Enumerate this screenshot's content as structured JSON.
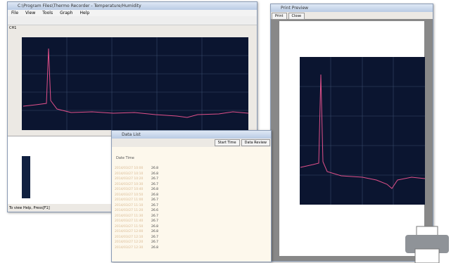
{
  "main_window": {
    "title": "C:\\Program Files\\Thermo Recorder - Temperature/Humidity",
    "menu": [
      "File",
      "View",
      "Tools",
      "Graph",
      "Help"
    ],
    "status": "To view Help, Press[F1]",
    "channel": "CH1"
  },
  "data_list": {
    "title": "Data List",
    "buttons": [
      "Start Time",
      "Data Review"
    ],
    "column": "Date Time",
    "rows": [
      [
        "2014/03/27 10:00",
        "26.8"
      ],
      [
        "2014/03/27 10:10",
        "26.8"
      ],
      [
        "2014/03/27 10:20",
        "26.7"
      ],
      [
        "2014/03/27 10:30",
        "26.7"
      ],
      [
        "2014/03/27 10:40",
        "26.8"
      ],
      [
        "2014/03/27 10:50",
        "26.8"
      ],
      [
        "2014/03/27 11:00",
        "26.7"
      ],
      [
        "2014/03/27 11:10",
        "26.7"
      ],
      [
        "2014/03/27 11:20",
        "26.6"
      ],
      [
        "2014/03/27 11:30",
        "26.7"
      ],
      [
        "2014/03/27 11:40",
        "26.7"
      ],
      [
        "2014/03/27 11:50",
        "26.8"
      ],
      [
        "2014/03/27 12:00",
        "26.8"
      ],
      [
        "2014/03/27 12:10",
        "26.7"
      ],
      [
        "2014/03/27 12:20",
        "26.7"
      ],
      [
        "2014/03/27 12:30",
        "26.8"
      ]
    ]
  },
  "print_preview": {
    "title": "Print Preview",
    "buttons": [
      "Print",
      "Close"
    ]
  }
}
